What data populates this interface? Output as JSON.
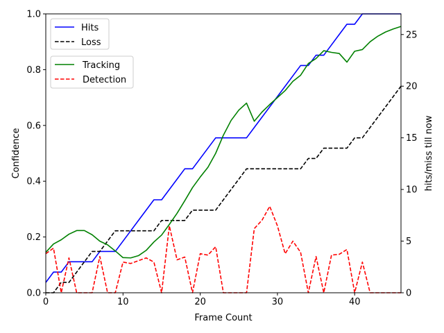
{
  "chart_data": {
    "type": "line",
    "title": "",
    "xlabel": "Frame Count",
    "ylabel_left": "Confidence",
    "ylabel_right": "hits/miss till now",
    "xlim": [
      0,
      46
    ],
    "ylim_left": [
      0,
      1.0
    ],
    "ylim_right": [
      0,
      27
    ],
    "x_ticks": [
      0,
      10,
      20,
      30,
      40
    ],
    "y_ticks_left": [
      0.0,
      0.2,
      0.4,
      0.6,
      0.8,
      1.0
    ],
    "y_tick_labels_left": [
      "0.0",
      "0.2",
      "0.4",
      "0.6",
      "0.8",
      "1.0"
    ],
    "y_ticks_right": [
      0,
      5,
      10,
      15,
      20,
      25
    ],
    "grid": false,
    "legends": [
      {
        "placement": "top-left",
        "entries": [
          "Hits",
          "Loss"
        ]
      },
      {
        "placement": "upper-left",
        "entries": [
          "Tracking",
          "Detection"
        ]
      }
    ],
    "series": [
      {
        "name": "Hits",
        "axis": "right",
        "color": "#0000ff",
        "dash": "solid",
        "x": [
          0,
          1,
          2,
          3,
          4,
          5,
          6,
          7,
          8,
          9,
          10,
          11,
          12,
          13,
          14,
          15,
          16,
          17,
          18,
          19,
          20,
          21,
          22,
          23,
          24,
          25,
          26,
          27,
          28,
          29,
          30,
          31,
          32,
          33,
          34,
          35,
          36,
          37,
          38,
          39,
          40,
          41,
          42,
          43,
          44,
          45,
          46
        ],
        "values": [
          1,
          2,
          2,
          3,
          3,
          3,
          3,
          4,
          4,
          4,
          5,
          6,
          7,
          8,
          9,
          9,
          10,
          11,
          12,
          12,
          13,
          14,
          15,
          15,
          15,
          15,
          15,
          16,
          17,
          18,
          19,
          20,
          21,
          22,
          22,
          23,
          23,
          24,
          25,
          26,
          26,
          27,
          27,
          27,
          27,
          27,
          27
        ]
      },
      {
        "name": "Loss",
        "axis": "right",
        "color": "#000000",
        "dash": "dashed",
        "x": [
          0,
          1,
          2,
          3,
          4,
          5,
          6,
          7,
          8,
          9,
          10,
          11,
          12,
          13,
          14,
          15,
          16,
          17,
          18,
          19,
          20,
          21,
          22,
          23,
          24,
          25,
          26,
          27,
          28,
          29,
          30,
          31,
          32,
          33,
          34,
          35,
          36,
          37,
          38,
          39,
          40,
          41,
          42,
          43,
          44,
          45,
          46
        ],
        "values": [
          0,
          0,
          1,
          1,
          2,
          3,
          4,
          4,
          5,
          6,
          6,
          6,
          6,
          6,
          6,
          7,
          7,
          7,
          7,
          8,
          8,
          8,
          8,
          9,
          10,
          11,
          12,
          12,
          12,
          12,
          12,
          12,
          12,
          12,
          13,
          13,
          14,
          14,
          14,
          14,
          15,
          15,
          16,
          17,
          18,
          19,
          20
        ]
      },
      {
        "name": "Tracking",
        "axis": "left",
        "color": "#008000",
        "dash": "solid",
        "x": [
          0,
          1,
          2,
          3,
          4,
          5,
          6,
          7,
          8,
          9,
          10,
          11,
          12,
          13,
          14,
          15,
          16,
          17,
          18,
          19,
          20,
          21,
          22,
          23,
          24,
          25,
          26,
          27,
          28,
          29,
          30,
          31,
          32,
          33,
          34,
          35,
          36,
          37,
          38,
          39,
          40,
          41,
          42,
          43,
          44,
          45,
          46
        ],
        "values": [
          0.145,
          0.175,
          0.19,
          0.21,
          0.223,
          0.223,
          0.208,
          0.185,
          0.172,
          0.15,
          0.126,
          0.125,
          0.133,
          0.152,
          0.182,
          0.207,
          0.245,
          0.285,
          0.33,
          0.377,
          0.415,
          0.45,
          0.5,
          0.565,
          0.618,
          0.655,
          0.68,
          0.615,
          0.648,
          0.675,
          0.7,
          0.725,
          0.758,
          0.78,
          0.822,
          0.84,
          0.868,
          0.862,
          0.858,
          0.827,
          0.866,
          0.872,
          0.9,
          0.92,
          0.935,
          0.946,
          0.955
        ]
      },
      {
        "name": "Detection",
        "axis": "left",
        "color": "#ff0000",
        "dash": "dashed",
        "x": [
          0,
          1,
          2,
          3,
          4,
          5,
          6,
          7,
          8,
          9,
          10,
          11,
          12,
          13,
          14,
          15,
          16,
          17,
          18,
          19,
          20,
          21,
          22,
          23,
          24,
          25,
          26,
          27,
          28,
          29,
          30,
          31,
          32,
          33,
          34,
          35,
          36,
          37,
          38,
          39,
          40,
          41,
          42,
          43,
          44,
          45,
          46
        ],
        "values": [
          0.14,
          0.16,
          0.0,
          0.125,
          0.0,
          0.0,
          0.0,
          0.13,
          0.0,
          0.0,
          0.11,
          0.105,
          0.115,
          0.125,
          0.11,
          0.0,
          0.24,
          0.118,
          0.128,
          0.0,
          0.14,
          0.135,
          0.165,
          0.0,
          0.0,
          0.0,
          0.0,
          0.23,
          0.26,
          0.31,
          0.24,
          0.14,
          0.185,
          0.145,
          0.0,
          0.13,
          0.0,
          0.135,
          0.138,
          0.155,
          0.0,
          0.11,
          0.0,
          0.0,
          0.0,
          0.0,
          0.0
        ]
      }
    ]
  }
}
